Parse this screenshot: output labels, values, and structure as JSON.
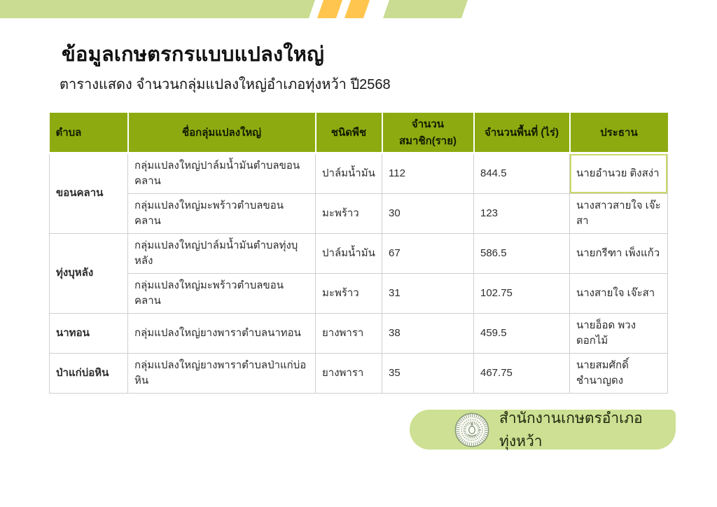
{
  "header": {
    "title": "ข้อมูลเกษตรกรแบบแปลงใหญ่",
    "subtitle": "ตารางแสดง จำนวนกลุ่มแปลงใหญ่อำเภอทุ่งหว้า ปี2568"
  },
  "colors": {
    "table_header_bg": "#8dab10",
    "tambon_column_bg": "#e5eeb4",
    "top_bar_green": "#c9dc92",
    "stripe_yellow": "#ffc54f",
    "footer_pill_green": "#cde093",
    "grid_line": "#cfcfcf",
    "highlight_cell_border": "#ccd966"
  },
  "table": {
    "columns": [
      "ตำบล",
      "ชื่อกลุ่มแปลงใหญ่",
      "ชนิดพืช",
      "จำนวนสมาชิก(ราย)",
      "จำนวนพื้นที่ (ไร่)",
      "ประธาน"
    ],
    "groups": [
      {
        "tambon": "ขอนคลาน",
        "rows": [
          {
            "group_name": "กลุ่มแปลงใหญ่ปาล์มน้ำมันตำบลขอนคลาน",
            "crop": "ปาล์มน้ำมัน",
            "members": "112",
            "area": "844.5",
            "chairman": "นายอำนวย  ติงสง่า",
            "highlighted": true
          },
          {
            "group_name": "กลุ่มแปลงใหญ่มะพร้าวตำบลขอนคลาน",
            "crop": "มะพร้าว",
            "members": "30",
            "area": "123",
            "chairman": "นางสาวสายใจ เจ๊ะสา",
            "highlighted": false
          }
        ]
      },
      {
        "tambon": "ทุ่งบุหลัง",
        "rows": [
          {
            "group_name": "กลุ่มแปลงใหญ่ปาล์มน้ำมันตำบลทุ่งบุหลัง",
            "crop": "ปาล์มน้ำมัน",
            "members": "67",
            "area": "586.5",
            "chairman": "นายกรีฑา เพ็งแก้ว",
            "highlighted": false
          },
          {
            "group_name": "กลุ่มแปลงใหญ่มะพร้าวตำบลขอนคลาน",
            "crop": "มะพร้าว",
            "members": "31",
            "area": "102.75",
            "chairman": "นางสายใจ  เจ๊ะสา",
            "highlighted": false
          }
        ]
      },
      {
        "tambon": "นาทอน",
        "rows": [
          {
            "group_name": "กลุ่มแปลงใหญ่ยางพาราตำบลนาทอน",
            "crop": "ยางพารา",
            "members": "38",
            "area": "459.5",
            "chairman": "นายอ็อด พวงดอกไม้",
            "highlighted": false
          }
        ]
      },
      {
        "tambon": "ป่าแก่บ่อหิน",
        "rows": [
          {
            "group_name": "กลุ่มแปลงใหญ่ยางพาราตำบลป่าแก่บ่อหิน",
            "crop": "ยางพารา",
            "members": "35",
            "area": "467.75",
            "chairman": "นายสมศักดิ์  ชำนาญดง",
            "highlighted": false
          }
        ]
      }
    ]
  },
  "footer": {
    "org_name": "สำนักงานเกษตรอำเภอทุ่งหว้า",
    "logo": "government-seal"
  }
}
